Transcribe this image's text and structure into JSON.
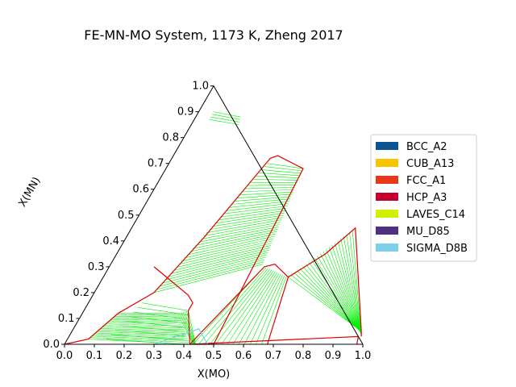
{
  "chart_data": {
    "type": "ternary",
    "title": "FE-MN-MO System, 1173 K, Zheng 2017",
    "xlabel": "X(MO)",
    "ylabel": "X(MN)",
    "xlim": [
      0,
      1
    ],
    "ylim": [
      0,
      1
    ],
    "x_ticks": [
      "0.0",
      "0.1",
      "0.2",
      "0.3",
      "0.4",
      "0.5",
      "0.6",
      "0.7",
      "0.8",
      "0.9",
      "1.0"
    ],
    "y_ticks": [
      "0.0",
      "0.1",
      "0.2",
      "0.3",
      "0.4",
      "0.5",
      "0.6",
      "0.7",
      "0.8",
      "0.9",
      "1.0"
    ],
    "legend_position": "right",
    "legend": [
      {
        "name": "BCC_A2",
        "color": "#0b5394"
      },
      {
        "name": "CUB_A13",
        "color": "#f6c700"
      },
      {
        "name": "FCC_A1",
        "color": "#e8381b"
      },
      {
        "name": "HCP_A3",
        "color": "#c4002b"
      },
      {
        "name": "LAVES_C14",
        "color": "#d2ef00"
      },
      {
        "name": "MU_D85",
        "color": "#4f2f82"
      },
      {
        "name": "SIGMA_D8B",
        "color": "#7ccfe8"
      }
    ],
    "tie_line_color": "#00ee00",
    "boundary_color": "#dd0000",
    "triangle_corners": [
      [
        0.3,
        0.0
      ],
      [
        0.48,
        0.0
      ],
      [
        0.42,
        0.06
      ]
    ],
    "boundaries": [
      {
        "name": "fcc-left",
        "color": "#dd0000",
        "points": [
          [
            0.0,
            0.0
          ],
          [
            0.07,
            0.02
          ],
          [
            0.12,
            0.12
          ],
          [
            0.2,
            0.2
          ],
          [
            0.26,
            0.41
          ],
          [
            0.33,
            0.72
          ],
          [
            0.35,
            0.73
          ],
          [
            0.46,
            0.68
          ],
          [
            0.5,
            0.0
          ]
        ]
      },
      {
        "name": "sigma-region",
        "color": "#dd0000",
        "points": [
          [
            0.15,
            0.3
          ],
          [
            0.32,
            0.19
          ],
          [
            0.35,
            0.16
          ],
          [
            0.35,
            0.13
          ],
          [
            0.42,
            0.0
          ],
          [
            0.5,
            0.0
          ]
        ]
      },
      {
        "name": "mid-dome",
        "color": "#dd0000",
        "points": [
          [
            0.42,
            0.0
          ],
          [
            0.52,
            0.3
          ],
          [
            0.55,
            0.31
          ],
          [
            0.62,
            0.26
          ],
          [
            0.68,
            0.0
          ]
        ]
      },
      {
        "name": "right-arc",
        "color": "#dd0000",
        "points": [
          [
            0.62,
            0.26
          ],
          [
            0.7,
            0.35
          ],
          [
            0.75,
            0.45
          ],
          [
            0.97,
            0.05
          ],
          [
            0.98,
            0.03
          ]
        ]
      },
      {
        "name": "bottom-band",
        "color": "#dd0000",
        "points": [
          [
            0.42,
            0.0
          ],
          [
            0.97,
            0.03
          ],
          [
            0.98,
            0.0
          ]
        ]
      }
    ],
    "tie_line_regions": [
      {
        "name": "fcc-lens",
        "from": [
          [
            0.2,
            0.2
          ],
          [
            0.33,
            0.7
          ]
        ],
        "to": [
          [
            0.51,
            0.31
          ],
          [
            0.46,
            0.68
          ]
        ],
        "count": 42
      },
      {
        "name": "bcc-wedge",
        "from": [
          [
            0.07,
            0.02
          ],
          [
            0.12,
            0.12
          ]
        ],
        "to": [
          [
            0.42,
            0.0
          ],
          [
            0.32,
            0.12
          ]
        ],
        "count": 18
      },
      {
        "name": "upper-wedge",
        "from": [
          [
            0.13,
            0.02
          ],
          [
            0.18,
            0.16
          ]
        ],
        "to": [
          [
            0.4,
            0.0
          ],
          [
            0.35,
            0.13
          ]
        ],
        "count": 9
      },
      {
        "name": "sigma-left",
        "from": [
          [
            0.32,
            0.12
          ],
          [
            0.35,
            0.13
          ]
        ],
        "to": [
          [
            0.43,
            0.0
          ],
          [
            0.44,
            0.0
          ]
        ],
        "count": 7
      },
      {
        "name": "mid-dome-ties",
        "from": [
          [
            0.52,
            0.3
          ],
          [
            0.62,
            0.26
          ]
        ],
        "to": [
          [
            0.43,
            0.0
          ],
          [
            0.68,
            0.0
          ]
        ],
        "count": 14
      },
      {
        "name": "right-fan",
        "from": [
          [
            0.62,
            0.26
          ],
          [
            0.75,
            0.45
          ]
        ],
        "to": [
          [
            0.97,
            0.05
          ],
          [
            0.98,
            0.03
          ]
        ],
        "count": 24
      },
      {
        "name": "mn-corner",
        "from": [
          [
            0.05,
            0.9
          ],
          [
            0.05,
            0.87
          ]
        ],
        "to": [
          [
            0.15,
            0.88
          ],
          [
            0.16,
            0.85
          ]
        ],
        "count": 4
      }
    ],
    "grid": false
  }
}
